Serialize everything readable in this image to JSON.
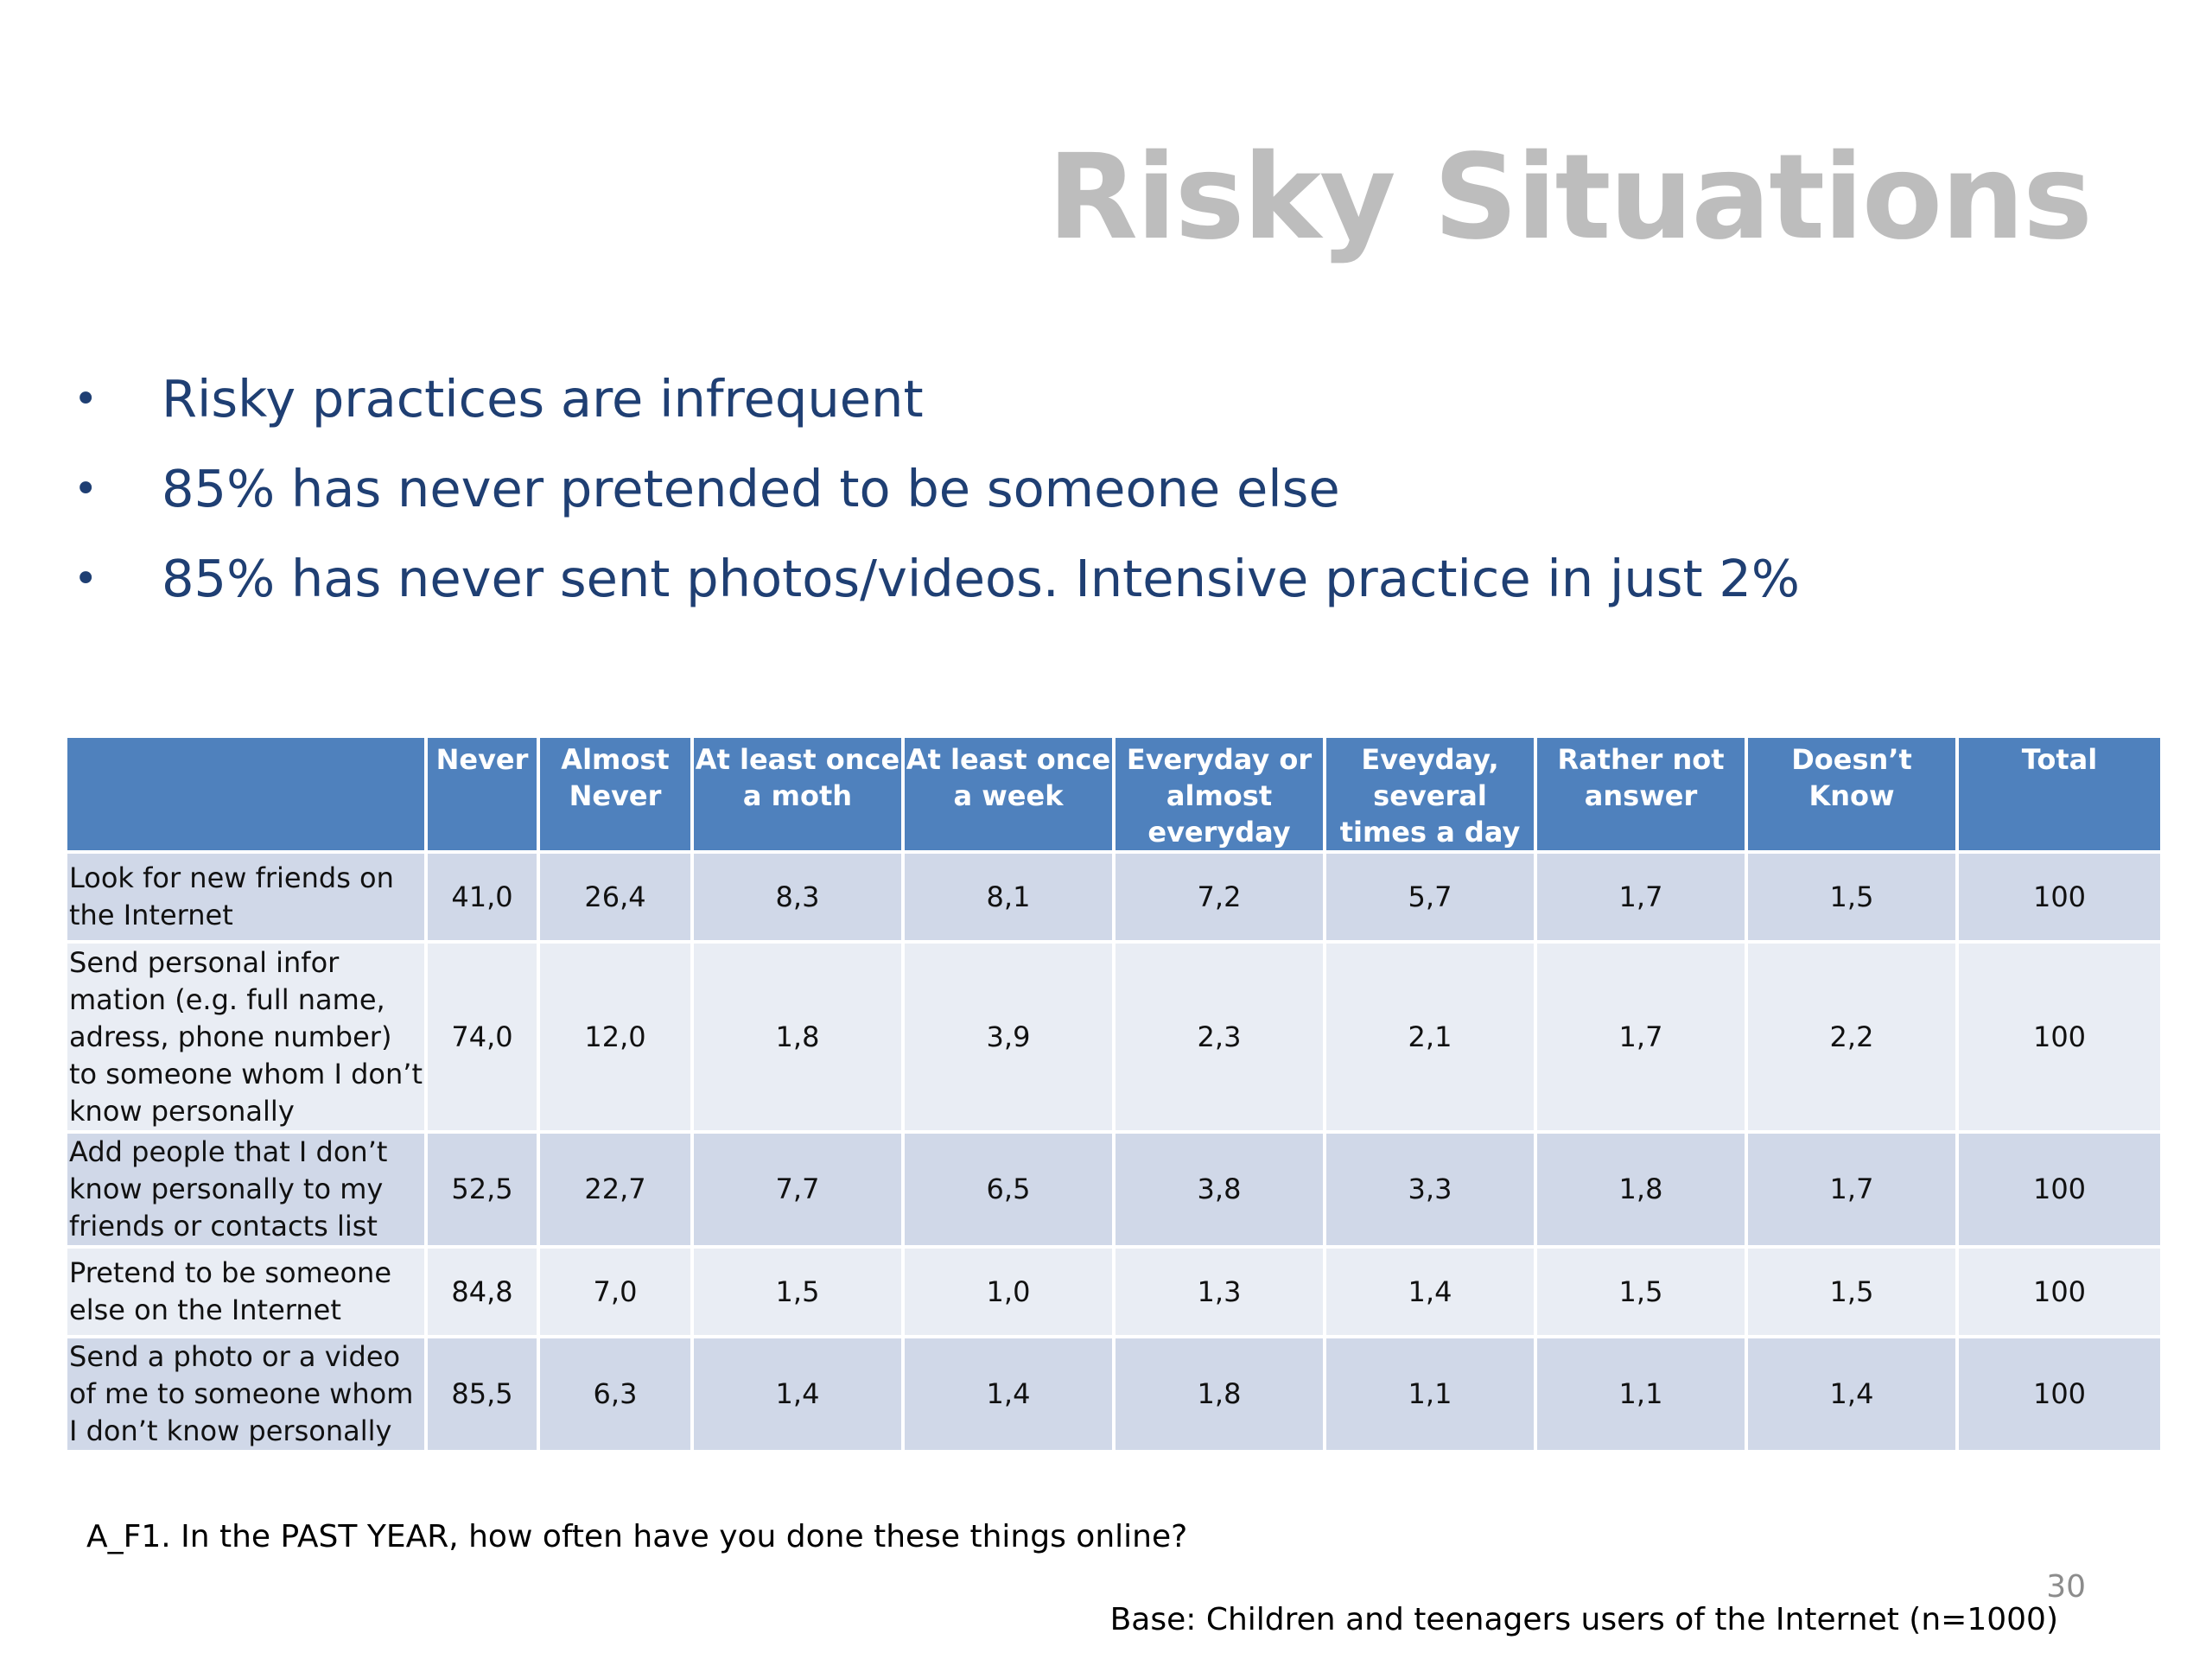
{
  "slide": {
    "title": "Risky Situations",
    "bullets": [
      "Risky practices are infrequent",
      "85% has never pretended to be someone else",
      "85% has never sent photos/videos. Intensive practice in just 2%"
    ],
    "bullet_glyph": "•",
    "table": {
      "header_color": "#4f81bd",
      "row_colors": [
        "#d0d8e8",
        "#e9edf4"
      ],
      "columns": [
        "",
        "Never",
        "Almost Never",
        "At least once a moth",
        "At least once a week",
        "Everyday or almost everyday",
        "Eveyday, several times a day",
        "Rather not answer",
        "Doesn’t Know",
        "Total"
      ],
      "rows": [
        [
          "Look for new friends on the Internet",
          "41,0",
          "26,4",
          "8,3",
          "8,1",
          "7,2",
          "5,7",
          "1,7",
          "1,5",
          "100"
        ],
        [
          "Send personal infor mation (e.g. full name, adress, phone number) to someone whom I don’t know personally",
          "74,0",
          "12,0",
          "1,8",
          "3,9",
          "2,3",
          "2,1",
          "1,7",
          "2,2",
          "100"
        ],
        [
          "Add people that I don’t know personally to my friends or contacts list",
          "52,5",
          "22,7",
          "7,7",
          "6,5",
          "3,8",
          "3,3",
          "1,8",
          "1,7",
          "100"
        ],
        [
          "Pretend to be someone else on the Internet",
          "84,8",
          "7,0",
          "1,5",
          "1,0",
          "1,3",
          "1,4",
          "1,5",
          "1,5",
          "100"
        ],
        [
          "Send a photo or a video of me to someone whom I don’t know personally",
          "85,5",
          "6,3",
          "1,4",
          "1,4",
          "1,8",
          "1,1",
          "1,1",
          "1,4",
          "100"
        ]
      ]
    },
    "question": "A_F1. In the PAST YEAR, how often have you done these things online?",
    "page_number": "30",
    "base_note": "Base: Children and teenagers users of the Internet (n=1000)"
  }
}
